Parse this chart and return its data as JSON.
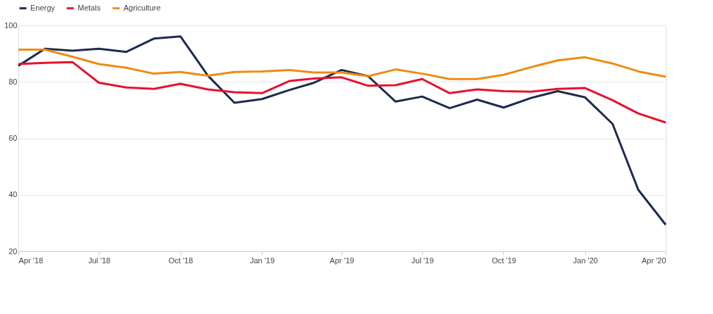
{
  "chart_data": {
    "type": "line",
    "x": [
      "2018-04",
      "2018-05",
      "2018-06",
      "2018-07",
      "2018-08",
      "2018-09",
      "2018-10",
      "2018-11",
      "2018-12",
      "2019-01",
      "2019-02",
      "2019-03",
      "2019-04",
      "2019-05",
      "2019-06",
      "2019-07",
      "2019-08",
      "2019-09",
      "2019-10",
      "2019-11",
      "2019-12",
      "2020-01",
      "2020-02",
      "2020-03",
      "2020-04"
    ],
    "series": [
      {
        "name": "Energy",
        "color": "#1c2b4d",
        "values": [
          85.7,
          91.7,
          91,
          91.7,
          90.6,
          95.3,
          96.1,
          82.2,
          72.6,
          73.9,
          77.1,
          79.7,
          84.2,
          82,
          73,
          74.8,
          70.7,
          73.7,
          70.9,
          74.3,
          76.7,
          74.5,
          65.1,
          41.8,
          29.4
        ]
      },
      {
        "name": "Metals",
        "color": "#e8102e",
        "values": [
          86.3,
          86.7,
          87,
          79.7,
          78,
          77.5,
          79.3,
          77.3,
          76.3,
          76,
          80.3,
          81.2,
          81.6,
          78.6,
          78.8,
          81,
          76,
          77.3,
          76.7,
          76.5,
          77.5,
          77.8,
          73.5,
          68.8,
          65.6
        ]
      },
      {
        "name": "Agriculture",
        "color": "#f08a12",
        "values": [
          91.4,
          91.4,
          88.9,
          86.3,
          85,
          82.9,
          83.5,
          82.2,
          83.5,
          83.7,
          84.2,
          83.3,
          83.3,
          82,
          84.4,
          82.9,
          81,
          81,
          82.5,
          85.2,
          87.6,
          88.7,
          86.5,
          83.7,
          81.8
        ]
      }
    ],
    "xlim": [
      "2018-04",
      "2020-04"
    ],
    "xticks": [
      {
        "value": "2018-04",
        "label": "Apr '18"
      },
      {
        "value": "2018-07",
        "label": "Jul '18"
      },
      {
        "value": "2018-10",
        "label": "Oct '18"
      },
      {
        "value": "2019-01",
        "label": "Jan '19"
      },
      {
        "value": "2019-04",
        "label": "Apr '19"
      },
      {
        "value": "2019-07",
        "label": "Jul '19"
      },
      {
        "value": "2019-10",
        "label": "Oct '19"
      },
      {
        "value": "2020-01",
        "label": "Jan '20"
      },
      {
        "value": "2020-04",
        "label": "Apr '20"
      }
    ],
    "ylim": [
      20,
      100
    ],
    "yticks": [
      20,
      40,
      60,
      80,
      100
    ],
    "grid": "y",
    "legend": "top left",
    "marker": "none",
    "line_style": "solid"
  }
}
